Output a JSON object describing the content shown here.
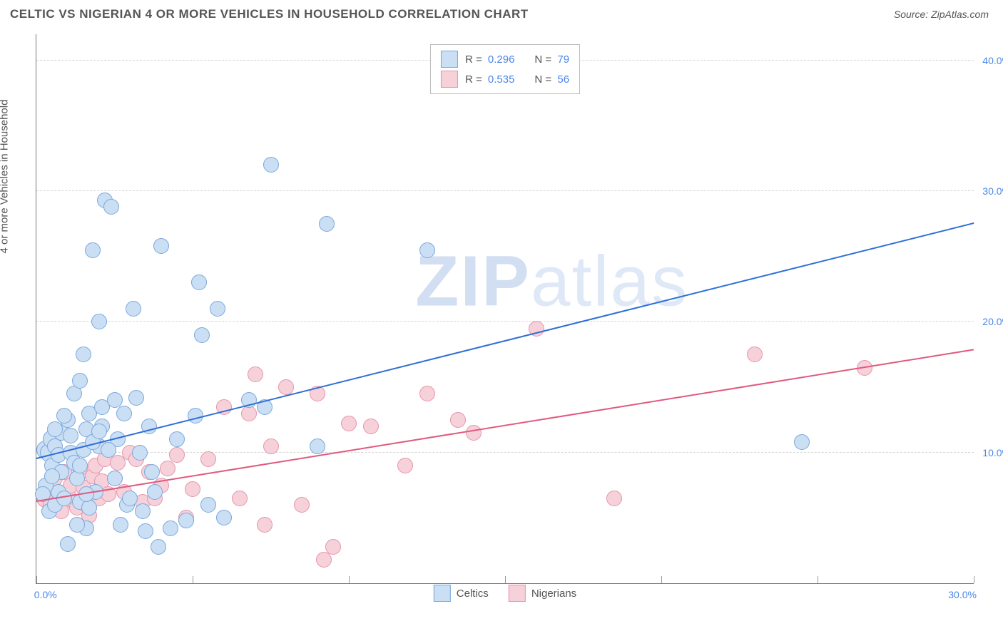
{
  "header": {
    "title": "CELTIC VS NIGERIAN 4 OR MORE VEHICLES IN HOUSEHOLD CORRELATION CHART",
    "source_prefix": "Source: ",
    "source_name": "ZipAtlas.com"
  },
  "chart": {
    "type": "scatter",
    "y_axis_label": "4 or more Vehicles in Household",
    "watermark_bold": "ZIP",
    "watermark_rest": "atlas",
    "xlim": [
      0,
      30
    ],
    "ylim": [
      0,
      42
    ],
    "x_ticks": [
      0,
      5,
      10,
      15,
      20,
      25,
      30
    ],
    "x_tick_labels": [
      "0.0%",
      "",
      "",
      "",
      "",
      "",
      "30.0%"
    ],
    "y_ticks": [
      10,
      20,
      30,
      40
    ],
    "y_tick_labels": [
      "10.0%",
      "20.0%",
      "30.0%",
      "40.0%"
    ],
    "background_color": "#ffffff",
    "grid_color": "#d6d6d6",
    "axis_color": "#777777",
    "series": {
      "celtics": {
        "label": "Celtics",
        "fill": "#cadef4",
        "stroke": "#7ba8dc",
        "line_color": "#2e6fd6",
        "R": "0.296",
        "N": "79",
        "trend": {
          "x1": 0,
          "y1": 9.5,
          "x2": 30,
          "y2": 27.5
        },
        "points": [
          [
            0.3,
            10.2
          ],
          [
            0.4,
            10.0
          ],
          [
            0.5,
            11.0
          ],
          [
            0.5,
            9.0
          ],
          [
            0.6,
            10.5
          ],
          [
            0.7,
            9.8
          ],
          [
            0.8,
            11.5
          ],
          [
            0.8,
            8.5
          ],
          [
            0.4,
            5.5
          ],
          [
            0.6,
            6.0
          ],
          [
            0.7,
            7.0
          ],
          [
            0.9,
            6.5
          ],
          [
            1.0,
            3.0
          ],
          [
            1.0,
            12.5
          ],
          [
            1.1,
            10.0
          ],
          [
            1.2,
            9.2
          ],
          [
            1.2,
            14.5
          ],
          [
            1.3,
            8.0
          ],
          [
            1.4,
            15.5
          ],
          [
            1.4,
            6.2
          ],
          [
            1.5,
            17.5
          ],
          [
            1.5,
            10.2
          ],
          [
            1.6,
            11.8
          ],
          [
            1.6,
            4.2
          ],
          [
            1.7,
            5.8
          ],
          [
            1.7,
            13.0
          ],
          [
            1.8,
            25.5
          ],
          [
            1.9,
            7.0
          ],
          [
            2.0,
            20.0
          ],
          [
            2.0,
            10.5
          ],
          [
            2.1,
            13.5
          ],
          [
            2.1,
            12.0
          ],
          [
            2.2,
            29.3
          ],
          [
            2.4,
            28.8
          ],
          [
            2.5,
            14.0
          ],
          [
            2.5,
            8.0
          ],
          [
            2.6,
            11.0
          ],
          [
            2.7,
            4.5
          ],
          [
            2.8,
            13.0
          ],
          [
            2.9,
            6.0
          ],
          [
            3.0,
            6.5
          ],
          [
            3.1,
            21.0
          ],
          [
            3.2,
            14.2
          ],
          [
            3.3,
            10.0
          ],
          [
            3.4,
            5.5
          ],
          [
            3.5,
            4.0
          ],
          [
            3.6,
            12.0
          ],
          [
            3.7,
            8.5
          ],
          [
            3.8,
            7.0
          ],
          [
            3.9,
            2.8
          ],
          [
            4.0,
            25.8
          ],
          [
            4.3,
            4.2
          ],
          [
            4.5,
            11.0
          ],
          [
            4.8,
            4.8
          ],
          [
            5.1,
            12.8
          ],
          [
            5.2,
            23.0
          ],
          [
            5.3,
            19.0
          ],
          [
            5.5,
            6.0
          ],
          [
            5.8,
            21.0
          ],
          [
            6.0,
            5.0
          ],
          [
            6.8,
            14.0
          ],
          [
            7.3,
            13.5
          ],
          [
            7.5,
            32.0
          ],
          [
            9.0,
            10.5
          ],
          [
            9.3,
            27.5
          ],
          [
            12.5,
            25.5
          ],
          [
            24.5,
            10.8
          ],
          [
            0.3,
            7.5
          ],
          [
            0.5,
            8.2
          ],
          [
            0.2,
            6.8
          ],
          [
            0.6,
            11.8
          ],
          [
            0.9,
            12.8
          ],
          [
            1.1,
            11.3
          ],
          [
            1.3,
            4.5
          ],
          [
            1.4,
            9.0
          ],
          [
            1.6,
            6.8
          ],
          [
            1.8,
            10.8
          ],
          [
            2.0,
            11.6
          ],
          [
            2.3,
            10.2
          ]
        ]
      },
      "nigerians": {
        "label": "Nigerians",
        "fill": "#f6d1da",
        "stroke": "#e495ab",
        "line_color": "#e05a7f",
        "R": "0.535",
        "N": "56",
        "trend": {
          "x1": 0,
          "y1": 6.2,
          "x2": 30,
          "y2": 17.8
        },
        "points": [
          [
            0.3,
            6.5
          ],
          [
            0.4,
            7.2
          ],
          [
            0.5,
            6.0
          ],
          [
            0.6,
            8.0
          ],
          [
            0.7,
            7.0
          ],
          [
            0.8,
            5.5
          ],
          [
            0.9,
            8.5
          ],
          [
            1.0,
            6.8
          ],
          [
            1.1,
            7.5
          ],
          [
            1.2,
            6.2
          ],
          [
            1.3,
            5.8
          ],
          [
            1.4,
            8.8
          ],
          [
            1.5,
            7.3
          ],
          [
            1.6,
            6.0
          ],
          [
            1.7,
            5.2
          ],
          [
            1.8,
            8.2
          ],
          [
            1.9,
            9.0
          ],
          [
            2.0,
            6.5
          ],
          [
            2.1,
            7.8
          ],
          [
            2.2,
            9.5
          ],
          [
            2.3,
            6.8
          ],
          [
            2.5,
            8.0
          ],
          [
            2.6,
            9.2
          ],
          [
            2.8,
            7.0
          ],
          [
            3.0,
            10.0
          ],
          [
            3.2,
            9.5
          ],
          [
            3.4,
            6.2
          ],
          [
            3.6,
            8.5
          ],
          [
            3.8,
            6.5
          ],
          [
            4.0,
            7.5
          ],
          [
            4.2,
            8.8
          ],
          [
            4.5,
            9.8
          ],
          [
            4.8,
            5.0
          ],
          [
            5.0,
            7.2
          ],
          [
            5.5,
            9.5
          ],
          [
            6.0,
            13.5
          ],
          [
            6.5,
            6.5
          ],
          [
            6.8,
            13.0
          ],
          [
            7.0,
            16.0
          ],
          [
            7.5,
            10.5
          ],
          [
            8.0,
            15.0
          ],
          [
            8.5,
            6.0
          ],
          [
            9.0,
            14.5
          ],
          [
            9.5,
            2.8
          ],
          [
            10.0,
            12.2
          ],
          [
            10.7,
            12.0
          ],
          [
            11.8,
            9.0
          ],
          [
            12.5,
            14.5
          ],
          [
            13.5,
            12.5
          ],
          [
            14.0,
            11.5
          ],
          [
            16.0,
            19.5
          ],
          [
            18.5,
            6.5
          ],
          [
            23.0,
            17.5
          ],
          [
            26.5,
            16.5
          ],
          [
            9.2,
            1.8
          ],
          [
            7.3,
            4.5
          ]
        ]
      }
    }
  }
}
